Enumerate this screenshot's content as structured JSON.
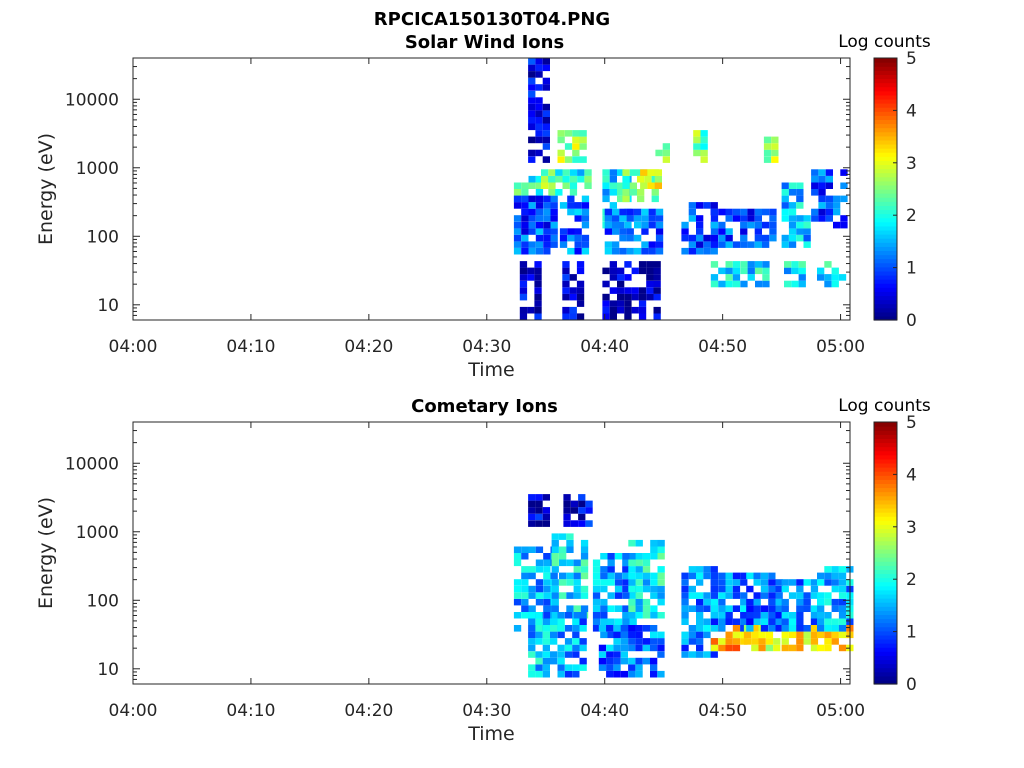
{
  "figure": {
    "title": "RPCICA150130T04.PNG"
  },
  "chart_data": [
    {
      "type": "heatmap",
      "title": "Solar Wind Ions",
      "xlabel": "Time",
      "ylabel": "Energy (eV)",
      "x_tick_labels": [
        "04:00",
        "04:10",
        "04:20",
        "04:30",
        "04:40",
        "04:50",
        "05:00"
      ],
      "x_tick_minutes": [
        0,
        10,
        20,
        30,
        40,
        50,
        60
      ],
      "xlim_minutes": [
        0,
        60.8
      ],
      "y_scale": "log",
      "ylim": [
        6,
        40000
      ],
      "y_tick_labels": [
        "10",
        "100",
        "1000",
        "10000"
      ],
      "y_tick_values": [
        10,
        100,
        1000,
        10000
      ],
      "colorbar": {
        "label": "Log counts",
        "range": [
          0,
          5
        ],
        "ticks": [
          "0",
          "1",
          "2",
          "3",
          "4",
          "5"
        ],
        "colormap": "jet"
      },
      "data_start_minute": 32.3,
      "observed_blobs": [
        {
          "t": [
            32.3,
            34.8
          ],
          "e": [
            330,
            700
          ],
          "logc": 2.0
        },
        {
          "t": [
            32.3,
            35.5
          ],
          "e": [
            60,
            330
          ],
          "logc": 1.0
        },
        {
          "t": [
            32.8,
            34.3
          ],
          "e": [
            6,
            35
          ],
          "logc": 0.4
        },
        {
          "t": [
            33.5,
            35.0
          ],
          "e": [
            1200,
            40000
          ],
          "logc": 0.5
        },
        {
          "t": [
            34.6,
            35.8
          ],
          "e": [
            400,
            800
          ],
          "logc": 2.6
        },
        {
          "t": [
            35.8,
            38.3
          ],
          "e": [
            400,
            900
          ],
          "logc": 2.0
        },
        {
          "t": [
            36.0,
            38.3
          ],
          "e": [
            1200,
            3000
          ],
          "logc": 2.6
        },
        {
          "t": [
            36.2,
            38.2
          ],
          "e": [
            60,
            330
          ],
          "logc": 1.2
        },
        {
          "t": [
            36.4,
            38.0
          ],
          "e": [
            6,
            35
          ],
          "logc": 0.4
        },
        {
          "t": [
            39.8,
            42.0
          ],
          "e": [
            150,
            800
          ],
          "logc": 1.8
        },
        {
          "t": [
            41.5,
            44.5
          ],
          "e": [
            330,
            800
          ],
          "logc": 2.4
        },
        {
          "t": [
            43.0,
            44.8
          ],
          "e": [
            500,
            800
          ],
          "logc": 3.0
        },
        {
          "t": [
            40.0,
            44.8
          ],
          "e": [
            60,
            250
          ],
          "logc": 1.1
        },
        {
          "t": [
            39.8,
            44.5
          ],
          "e": [
            6,
            40
          ],
          "logc": 0.3
        },
        {
          "t": [
            44.3,
            45.0
          ],
          "e": [
            1200,
            2200
          ],
          "logc": 2.4
        },
        {
          "t": [
            46.5,
            49.5
          ],
          "e": [
            60,
            300
          ],
          "logc": 1.0
        },
        {
          "t": [
            47.5,
            48.2
          ],
          "e": [
            1200,
            3000
          ],
          "logc": 2.4
        },
        {
          "t": [
            49.0,
            54.5
          ],
          "e": [
            80,
            250
          ],
          "logc": 1.0
        },
        {
          "t": [
            49.0,
            51.0
          ],
          "e": [
            20,
            40
          ],
          "logc": 1.8
        },
        {
          "t": [
            51.5,
            53.5
          ],
          "e": [
            20,
            40
          ],
          "logc": 1.8
        },
        {
          "t": [
            53.5,
            54.5
          ],
          "e": [
            1200,
            2500
          ],
          "logc": 2.6
        },
        {
          "t": [
            55.0,
            57.0
          ],
          "e": [
            80,
            600
          ],
          "logc": 1.6
        },
        {
          "t": [
            55.2,
            57.0
          ],
          "e": [
            20,
            40
          ],
          "logc": 1.8
        },
        {
          "t": [
            57.5,
            60.0
          ],
          "e": [
            150,
            900
          ],
          "logc": 1.0
        },
        {
          "t": [
            58.0,
            60.0
          ],
          "e": [
            20,
            40
          ],
          "logc": 1.9
        }
      ]
    },
    {
      "type": "heatmap",
      "title": "Cometary Ions",
      "xlabel": "Time",
      "ylabel": "Energy (eV)",
      "x_tick_labels": [
        "04:00",
        "04:10",
        "04:20",
        "04:30",
        "04:40",
        "04:50",
        "05:00"
      ],
      "x_tick_minutes": [
        0,
        10,
        20,
        30,
        40,
        50,
        60
      ],
      "xlim_minutes": [
        0,
        60.8
      ],
      "y_scale": "log",
      "ylim": [
        6,
        40000
      ],
      "y_tick_labels": [
        "10",
        "100",
        "1000",
        "10000"
      ],
      "y_tick_values": [
        10,
        100,
        1000,
        10000
      ],
      "colorbar": {
        "label": "Log counts",
        "range": [
          0,
          5
        ],
        "ticks": [
          "0",
          "1",
          "2",
          "3",
          "4",
          "5"
        ],
        "colormap": "jet"
      },
      "data_start_minute": 32.3,
      "observed_blobs": [
        {
          "t": [
            32.3,
            35.5
          ],
          "e": [
            40,
            500
          ],
          "logc": 1.5
        },
        {
          "t": [
            33.5,
            35.5
          ],
          "e": [
            8,
            60
          ],
          "logc": 1.6
        },
        {
          "t": [
            35.5,
            38.5
          ],
          "e": [
            60,
            900
          ],
          "logc": 1.8
        },
        {
          "t": [
            36.0,
            38.0
          ],
          "e": [
            8,
            60
          ],
          "logc": 1.4
        },
        {
          "t": [
            39.0,
            42.5
          ],
          "e": [
            30,
            400
          ],
          "logc": 1.4
        },
        {
          "t": [
            42.0,
            45.0
          ],
          "e": [
            60,
            700
          ],
          "logc": 1.8
        },
        {
          "t": [
            39.5,
            44.5
          ],
          "e": [
            8,
            40
          ],
          "logc": 1.2
        },
        {
          "t": [
            46.5,
            49.0
          ],
          "e": [
            15,
            300
          ],
          "logc": 1.3
        },
        {
          "t": [
            49.0,
            51.5
          ],
          "e": [
            20,
            40
          ],
          "logc": 3.5
        },
        {
          "t": [
            49.0,
            52.0
          ],
          "e": [
            40,
            250
          ],
          "logc": 1.3
        },
        {
          "t": [
            51.8,
            54.5
          ],
          "e": [
            20,
            40
          ],
          "logc": 3.1
        },
        {
          "t": [
            52.0,
            54.8
          ],
          "e": [
            40,
            250
          ],
          "logc": 1.2
        },
        {
          "t": [
            55.0,
            57.5
          ],
          "e": [
            20,
            40
          ],
          "logc": 3.1
        },
        {
          "t": [
            55.0,
            57.5
          ],
          "e": [
            40,
            200
          ],
          "logc": 1.3
        },
        {
          "t": [
            58.0,
            60.5
          ],
          "e": [
            20,
            40
          ],
          "logc": 3.2
        },
        {
          "t": [
            58.0,
            60.5
          ],
          "e": [
            40,
            300
          ],
          "logc": 1.5
        },
        {
          "t": [
            33.5,
            35.0
          ],
          "e": [
            1200,
            3500
          ],
          "logc": 0.4
        },
        {
          "t": [
            36.5,
            38.5
          ],
          "e": [
            1200,
            3500
          ],
          "logc": 0.5
        }
      ]
    }
  ]
}
